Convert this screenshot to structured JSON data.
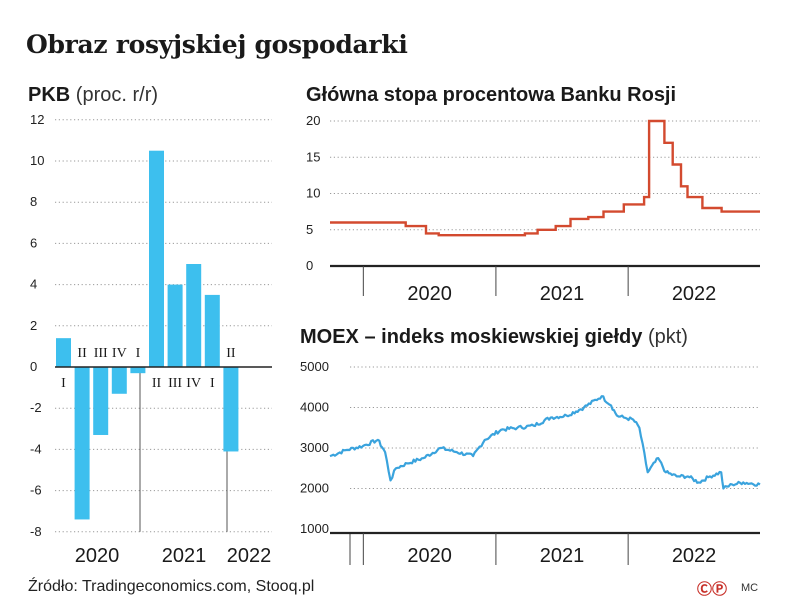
{
  "title": "Obraz rosyjskiej gospodarki",
  "source": "Źródło: Tradingeconomics.com, Stooq.pl",
  "logo": "ⒸⓅ",
  "author": "MC",
  "colors": {
    "bar": "#3dbfee",
    "rate_line": "#d34a2f",
    "moex_line": "#3aa3dd",
    "grid": "#999999"
  },
  "chart_data": [
    {
      "type": "bar",
      "title": "PKB",
      "unit": "(proc. r/r)",
      "categories": [
        "I",
        "II",
        "III",
        "IV",
        "I",
        "II",
        "III",
        "IV",
        "I",
        "II"
      ],
      "years": [
        "2020",
        "2021",
        "2022"
      ],
      "values": [
        1.4,
        -7.4,
        -3.3,
        -1.3,
        -0.3,
        10.5,
        4.0,
        5.0,
        3.5,
        -4.1
      ],
      "yticks": [
        12,
        10,
        8,
        6,
        4,
        2,
        0,
        -2,
        -4,
        -6,
        -8
      ],
      "ylim": [
        -8,
        12
      ]
    },
    {
      "type": "line",
      "title": "Główna stopa procentowa Banku Rosji",
      "yticks": [
        20,
        15,
        10,
        5,
        0
      ],
      "ylim": [
        0,
        20
      ],
      "years": [
        "2020",
        "2021",
        "2022"
      ],
      "x": [
        "2019-10-01",
        "2020-02-10",
        "2020-04-27",
        "2020-06-22",
        "2020-07-27",
        "2021-03-22",
        "2021-04-26",
        "2021-06-15",
        "2021-07-26",
        "2021-09-13",
        "2021-10-25",
        "2021-12-20",
        "2022-02-14",
        "2022-02-28",
        "2022-04-11",
        "2022-05-04",
        "2022-05-27",
        "2022-06-14",
        "2022-07-25",
        "2022-09-16",
        "2022-12-31"
      ],
      "values": [
        6.0,
        6.0,
        5.5,
        4.5,
        4.25,
        4.5,
        5.0,
        5.5,
        6.5,
        6.75,
        7.5,
        8.5,
        9.5,
        20.0,
        17.0,
        14.0,
        11.0,
        9.5,
        8.0,
        7.5,
        7.5
      ]
    },
    {
      "type": "line",
      "title": "MOEX – indeks moskiewskiej giełdy",
      "unit": "(pkt)",
      "yticks": [
        5000,
        4000,
        3000,
        2000,
        1000
      ],
      "ylim": [
        1000,
        5000
      ],
      "years": [
        "2020",
        "2021",
        "2022"
      ],
      "x": [
        "2019-10-01",
        "2019-11-15",
        "2019-12-31",
        "2020-02-10",
        "2020-03-01",
        "2020-03-16",
        "2020-03-31",
        "2020-05-01",
        "2020-06-15",
        "2020-08-01",
        "2020-09-15",
        "2020-10-30",
        "2020-12-01",
        "2021-01-15",
        "2021-03-01",
        "2021-04-15",
        "2021-06-01",
        "2021-07-15",
        "2021-09-01",
        "2021-10-20",
        "2021-11-15",
        "2021-12-01",
        "2021-12-20",
        "2022-01-15",
        "2022-02-01",
        "2022-02-24",
        "2022-03-25",
        "2022-04-15",
        "2022-05-15",
        "2022-06-15",
        "2022-07-15",
        "2022-08-15",
        "2022-09-15",
        "2022-09-21",
        "2022-10-15",
        "2022-11-15",
        "2022-12-31"
      ],
      "values": [
        2800,
        2950,
        3050,
        3200,
        2900,
        2200,
        2500,
        2620,
        2750,
        3000,
        2900,
        2800,
        3200,
        3450,
        3500,
        3550,
        3750,
        3800,
        4000,
        4280,
        4050,
        3800,
        3750,
        3700,
        3500,
        2400,
        2750,
        2400,
        2300,
        2300,
        2150,
        2300,
        2400,
        2000,
        2100,
        2150,
        2100
      ]
    }
  ]
}
